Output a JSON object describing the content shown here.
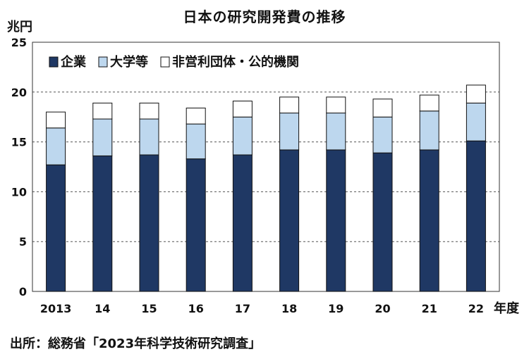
{
  "chart_data": {
    "type": "bar",
    "stacked": true,
    "title": "日本の研究開発費の推移",
    "ylabel": "兆円",
    "xlabel": "年度",
    "ylim": [
      0,
      25
    ],
    "yticks": [
      0,
      5,
      10,
      15,
      20,
      25
    ],
    "grid": true,
    "legend_position": "top-left",
    "categories": [
      "2013",
      "14",
      "15",
      "16",
      "17",
      "18",
      "19",
      "20",
      "21",
      "22"
    ],
    "series": [
      {
        "name": "企業",
        "color": "#1f3864",
        "values": [
          12.7,
          13.6,
          13.7,
          13.3,
          13.7,
          14.2,
          14.2,
          13.9,
          14.2,
          15.1
        ]
      },
      {
        "name": "大学等",
        "color": "#bdd7ee",
        "values": [
          3.7,
          3.7,
          3.6,
          3.5,
          3.8,
          3.7,
          3.7,
          3.6,
          3.9,
          3.8
        ]
      },
      {
        "name": "非営利団体・公的機関",
        "color": "#ffffff",
        "values": [
          1.6,
          1.6,
          1.6,
          1.6,
          1.6,
          1.6,
          1.6,
          1.8,
          1.6,
          1.8
        ]
      }
    ],
    "source": "出所：総務省「2023年科学技術研究調査」"
  }
}
